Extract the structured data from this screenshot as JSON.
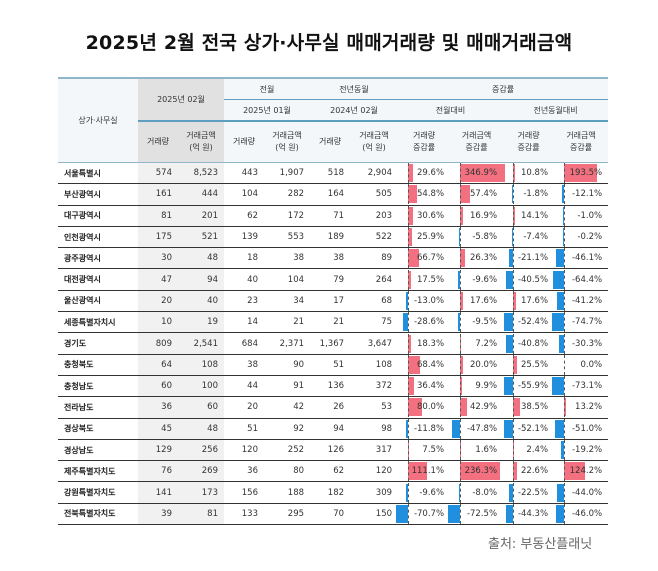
{
  "title": "2025년 2월 전국 상가·사무실 매매거래량 및 매매거래금액",
  "source": "출처: 부동산플래닛",
  "colors": {
    "positive_bar": "#f2707f",
    "negative_bar": "#1f8fde",
    "header_bg": "#f3f7f9",
    "current_bg": "#e1e1e1",
    "header_rule": "#5e9ec0"
  },
  "header": {
    "row_label": "상가·사무실",
    "current_period": "2025년 02월",
    "prev_month_group": "전월",
    "prev_month_period": "2025년 01월",
    "prev_year_group": "전년동월",
    "prev_year_period": "2024년 02월",
    "change_group": "증감률",
    "mom_group": "전월대비",
    "yoy_group": "전년동월대비",
    "col_volume": "거래량",
    "col_amount": "거래금액\n(억 원)",
    "col_volume_change": "거래량\n증감률",
    "col_amount_change": "거래금액\n증감률"
  },
  "rows": [
    {
      "region": "서울특별시",
      "v25": "574",
      "a25": "8,523",
      "v2501": "443",
      "a2501": "1,907",
      "v2402": "518",
      "a2402": "2,904",
      "mom_v": "29.6%",
      "mom_a": "346.9%",
      "yoy_v": "10.8%",
      "yoy_a": "193.5%"
    },
    {
      "region": "부산광역시",
      "v25": "161",
      "a25": "444",
      "v2501": "104",
      "a2501": "282",
      "v2402": "164",
      "a2402": "505",
      "mom_v": "54.8%",
      "mom_a": "57.4%",
      "yoy_v": "-1.8%",
      "yoy_a": "-12.1%"
    },
    {
      "region": "대구광역시",
      "v25": "81",
      "a25": "201",
      "v2501": "62",
      "a2501": "172",
      "v2402": "71",
      "a2402": "203",
      "mom_v": "30.6%",
      "mom_a": "16.9%",
      "yoy_v": "14.1%",
      "yoy_a": "-1.0%"
    },
    {
      "region": "인천광역시",
      "v25": "175",
      "a25": "521",
      "v2501": "139",
      "a2501": "553",
      "v2402": "189",
      "a2402": "522",
      "mom_v": "25.9%",
      "mom_a": "-5.8%",
      "yoy_v": "-7.4%",
      "yoy_a": "-0.2%"
    },
    {
      "region": "광주광역시",
      "v25": "30",
      "a25": "48",
      "v2501": "18",
      "a2501": "38",
      "v2402": "38",
      "a2402": "89",
      "mom_v": "66.7%",
      "mom_a": "26.3%",
      "yoy_v": "-21.1%",
      "yoy_a": "-46.1%"
    },
    {
      "region": "대전광역시",
      "v25": "47",
      "a25": "94",
      "v2501": "40",
      "a2501": "104",
      "v2402": "79",
      "a2402": "264",
      "mom_v": "17.5%",
      "mom_a": "-9.6%",
      "yoy_v": "-40.5%",
      "yoy_a": "-64.4%"
    },
    {
      "region": "울산광역시",
      "v25": "20",
      "a25": "40",
      "v2501": "23",
      "a2501": "34",
      "v2402": "17",
      "a2402": "68",
      "mom_v": "-13.0%",
      "mom_a": "17.6%",
      "yoy_v": "17.6%",
      "yoy_a": "-41.2%"
    },
    {
      "region": "세종특별자치시",
      "v25": "10",
      "a25": "19",
      "v2501": "14",
      "a2501": "21",
      "v2402": "21",
      "a2402": "75",
      "mom_v": "-28.6%",
      "mom_a": "-9.5%",
      "yoy_v": "-52.4%",
      "yoy_a": "-74.7%"
    },
    {
      "region": "경기도",
      "v25": "809",
      "a25": "2,541",
      "v2501": "684",
      "a2501": "2,371",
      "v2402": "1,367",
      "a2402": "3,647",
      "mom_v": "18.3%",
      "mom_a": "7.2%",
      "yoy_v": "-40.8%",
      "yoy_a": "-30.3%"
    },
    {
      "region": "충청북도",
      "v25": "64",
      "a25": "108",
      "v2501": "38",
      "a2501": "90",
      "v2402": "51",
      "a2402": "108",
      "mom_v": "68.4%",
      "mom_a": "20.0%",
      "yoy_v": "25.5%",
      "yoy_a": "0.0%"
    },
    {
      "region": "충청남도",
      "v25": "60",
      "a25": "100",
      "v2501": "44",
      "a2501": "91",
      "v2402": "136",
      "a2402": "372",
      "mom_v": "36.4%",
      "mom_a": "9.9%",
      "yoy_v": "-55.9%",
      "yoy_a": "-73.1%"
    },
    {
      "region": "전라남도",
      "v25": "36",
      "a25": "60",
      "v2501": "20",
      "a2501": "42",
      "v2402": "26",
      "a2402": "53",
      "mom_v": "80.0%",
      "mom_a": "42.9%",
      "yoy_v": "38.5%",
      "yoy_a": "13.2%"
    },
    {
      "region": "경상북도",
      "v25": "45",
      "a25": "48",
      "v2501": "51",
      "a2501": "92",
      "v2402": "94",
      "a2402": "98",
      "mom_v": "-11.8%",
      "mom_a": "-47.8%",
      "yoy_v": "-52.1%",
      "yoy_a": "-51.0%"
    },
    {
      "region": "경상남도",
      "v25": "129",
      "a25": "256",
      "v2501": "120",
      "a2501": "252",
      "v2402": "126",
      "a2402": "317",
      "mom_v": "7.5%",
      "mom_a": "1.6%",
      "yoy_v": "2.4%",
      "yoy_a": "-19.2%"
    },
    {
      "region": "제주특별자치도",
      "v25": "76",
      "a25": "269",
      "v2501": "36",
      "a2501": "80",
      "v2402": "62",
      "a2402": "120",
      "mom_v": "111.1%",
      "mom_a": "236.3%",
      "yoy_v": "22.6%",
      "yoy_a": "124.2%"
    },
    {
      "region": "강원특별자치도",
      "v25": "141",
      "a25": "173",
      "v2501": "156",
      "a2501": "188",
      "v2402": "182",
      "a2402": "309",
      "mom_v": "-9.6%",
      "mom_a": "-8.0%",
      "yoy_v": "-22.5%",
      "yoy_a": "-44.0%"
    },
    {
      "region": "전북특별자치도",
      "v25": "39",
      "a25": "81",
      "v2501": "133",
      "a2501": "295",
      "v2402": "70",
      "a2402": "150",
      "mom_v": "-70.7%",
      "mom_a": "-72.5%",
      "yoy_v": "-44.3%",
      "yoy_a": "-46.0%"
    }
  ]
}
